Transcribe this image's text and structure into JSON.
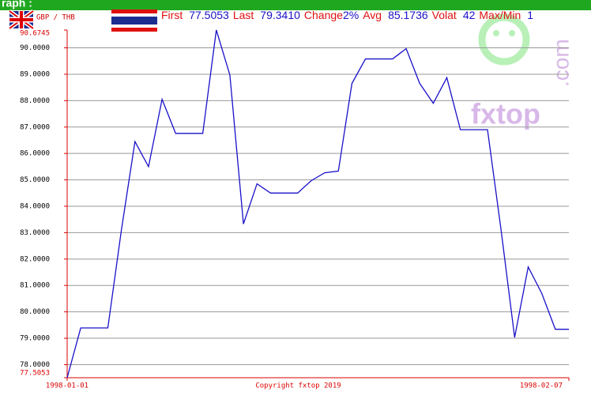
{
  "header": {
    "section_label": "raph :",
    "pair": "GBP / THB",
    "stats": [
      {
        "label": "First",
        "value": "77.5053"
      },
      {
        "label": "Last",
        "value": "79.3410"
      },
      {
        "label": "Change",
        "value": "2%"
      },
      {
        "label": "Avg",
        "value": "85.1736"
      },
      {
        "label": "Volat",
        "value": "42"
      },
      {
        "label": "Max/Min",
        "value": "1"
      }
    ]
  },
  "watermark": {
    "brand": "fxtop",
    "suffix": ".com"
  },
  "chart_data": {
    "type": "line",
    "annotation": "Copyright fxtop 2019",
    "categories": [
      "1998-01-01",
      null,
      null,
      null,
      null,
      null,
      null,
      null,
      null,
      null,
      null,
      null,
      null,
      null,
      null,
      null,
      null,
      null,
      null,
      null,
      null,
      null,
      null,
      null,
      null,
      null,
      null,
      null,
      null,
      null,
      null,
      null,
      null,
      null,
      null,
      null,
      null,
      "1998-02-07"
    ],
    "series": [
      {
        "name": "GBP / THB",
        "color": "#1a10c8",
        "values": [
          77.5053,
          79.39,
          79.39,
          79.39,
          83.1,
          86.45,
          85.5,
          88.05,
          86.76,
          86.76,
          86.76,
          90.6745,
          88.97,
          83.33,
          84.85,
          84.5,
          84.5,
          84.5,
          84.97,
          85.27,
          85.33,
          88.65,
          89.58,
          89.58,
          89.58,
          89.97,
          88.65,
          87.9,
          88.87,
          86.9,
          86.9,
          86.9,
          83.1,
          79.03,
          81.7,
          80.7,
          79.341,
          79.341
        ]
      }
    ],
    "ylim": [
      77.5053,
      90.6745
    ],
    "yticks": [
      77.5053,
      {
        "value": 78,
        "label": "78.0000"
      },
      {
        "value": 79,
        "label": "79.0000"
      },
      {
        "value": 80,
        "label": "80.0000"
      },
      {
        "value": 81,
        "label": "81.0000"
      },
      {
        "value": 82,
        "label": "82.0000"
      },
      {
        "value": 83,
        "label": "83.0000"
      },
      {
        "value": 84,
        "label": "84.0000"
      },
      {
        "value": 85,
        "label": "85.0000"
      },
      {
        "value": 86,
        "label": "86.0000"
      },
      {
        "value": 87,
        "label": "87.0000"
      },
      {
        "value": 88,
        "label": "88.0000"
      },
      {
        "value": 89,
        "label": "89.0000"
      },
      {
        "value": 90,
        "label": "90.0000"
      },
      90.6745
    ],
    "grid": true
  }
}
